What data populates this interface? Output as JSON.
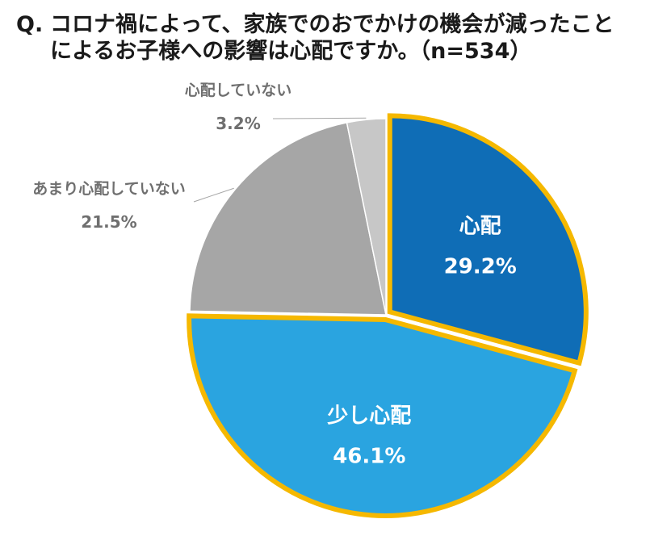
{
  "question": {
    "prefix": "Q.",
    "line1": "コロナ禍によって、家族でのおでかけの機会が減ったこと",
    "line2": "によるお子様への影響は心配ですか。（n=534）"
  },
  "chart_data": {
    "type": "pie",
    "title": "Q. コロナ禍によって、家族でのおでかけの機会が減ったことによるお子様への影響は心配ですか。（n=534）",
    "n": 534,
    "unit": "%",
    "slices": [
      {
        "label": "心配",
        "value": 29.2,
        "display": "29.2%",
        "color": "#0f6db6",
        "highlight": true
      },
      {
        "label": "少し心配",
        "value": 46.1,
        "display": "46.1%",
        "color": "#2aa4e0",
        "highlight": true
      },
      {
        "label": "あまり心配していない",
        "value": 21.5,
        "display": "21.5%",
        "color": "#a6a6a6",
        "highlight": false
      },
      {
        "label": "心配していない",
        "value": 3.2,
        "display": "3.2%",
        "color": "#c7c7c7",
        "highlight": false
      }
    ],
    "highlight_border_color": "#f5b800",
    "start": "12 o'clock, clockwise"
  }
}
